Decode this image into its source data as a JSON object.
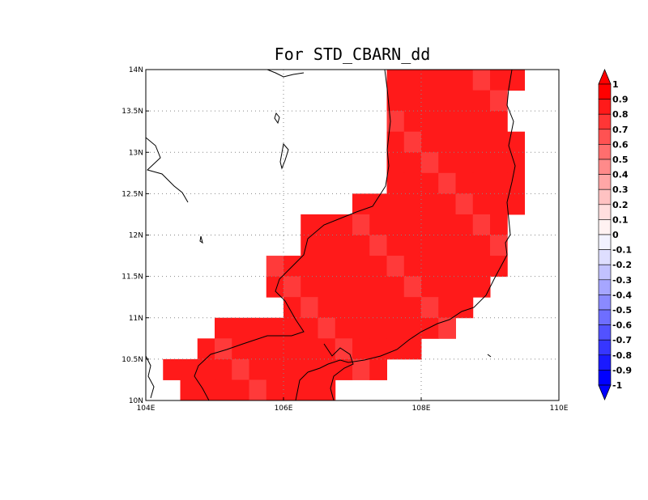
{
  "title": "For STD_CBARN_dd",
  "map": {
    "lat_ticks": [
      "14N",
      "13.5N",
      "13N",
      "12.5N",
      "12N",
      "11.5N",
      "11N",
      "10.5N",
      "10N"
    ],
    "lon_ticks": [
      "104E",
      "106E",
      "108E",
      "110E"
    ],
    "lon_range": [
      104,
      110
    ],
    "lat_range": [
      10,
      14
    ],
    "grid": "dotted",
    "cell_size_deg": 0.25,
    "field_color": "#ff1a1a"
  },
  "colorbar": {
    "labels": [
      "1",
      "0.9",
      "0.8",
      "0.7",
      "0.6",
      "0.5",
      "0.4",
      "0.3",
      "0.2",
      "0.1",
      "0",
      "-0.1",
      "-0.2",
      "-0.3",
      "-0.4",
      "-0.5",
      "-0.6",
      "-0.7",
      "-0.8",
      "-0.9",
      "-1"
    ],
    "colors": [
      "#ff0000",
      "#ff1a1a",
      "#ff3636",
      "#ff5252",
      "#ff6e6e",
      "#ff8a8a",
      "#ffa6a6",
      "#ffc2c2",
      "#ffdede",
      "#fff2f2",
      "#f2f2ff",
      "#dedeff",
      "#c2c2ff",
      "#a6a6ff",
      "#8a8aff",
      "#6e6eff",
      "#5252ff",
      "#3636ff",
      "#1a1aff",
      "#0000ff"
    ]
  }
}
